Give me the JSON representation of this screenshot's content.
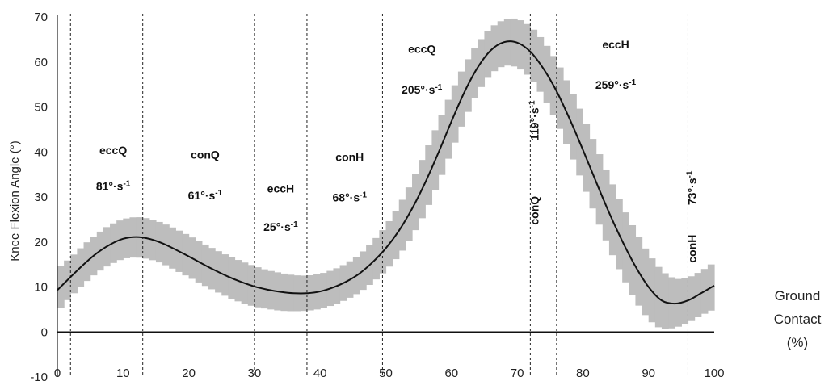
{
  "chart_data": {
    "type": "line",
    "title": "",
    "xlabel": [
      "Ground",
      "Contact",
      "(%)"
    ],
    "ylabel": "Knee Flexion Angle (°)",
    "xlim": [
      0,
      100
    ],
    "ylim": [
      -10,
      70
    ],
    "x_ticks": [
      0,
      10,
      20,
      30,
      40,
      50,
      60,
      70,
      80,
      90,
      100
    ],
    "y_ticks": [
      -10,
      0,
      10,
      20,
      30,
      40,
      50,
      60,
      70
    ],
    "grid": false,
    "colors": {
      "mean_line": "#111111",
      "sd_band": "#bdbdbd",
      "divider": "#222222"
    },
    "series": [
      {
        "x": [
          0,
          2,
          4,
          6,
          8,
          10,
          12,
          14,
          16,
          18,
          20,
          22,
          24,
          26,
          28,
          30,
          32,
          34,
          36,
          38,
          40,
          42,
          44,
          46,
          48,
          50,
          52,
          54,
          56,
          58,
          60,
          62,
          64,
          66,
          68,
          70,
          72,
          74,
          76,
          78,
          80,
          82,
          84,
          86,
          88,
          90,
          92,
          94,
          96,
          98,
          100
        ],
        "values": [
          9.3,
          12.2,
          15.0,
          17.5,
          19.4,
          20.7,
          21.1,
          20.7,
          19.7,
          18.3,
          16.8,
          15.2,
          13.7,
          12.3,
          11.1,
          10.1,
          9.4,
          8.9,
          8.6,
          8.6,
          9.0,
          9.9,
          11.2,
          13.0,
          15.5,
          18.6,
          22.5,
          27.4,
          33.2,
          39.8,
          46.8,
          53.4,
          58.8,
          62.6,
          64.4,
          64.3,
          62.3,
          58.5,
          53.5,
          47.3,
          40.5,
          33.4,
          26.5,
          20.2,
          14.6,
          10.0,
          7.0,
          6.3,
          7.0,
          8.6,
          10.3
        ],
        "sd_upper": [
          14.0,
          16.5,
          19.3,
          21.8,
          23.8,
          25.1,
          25.6,
          25.2,
          24.2,
          22.9,
          21.4,
          19.8,
          18.3,
          16.9,
          15.7,
          14.6,
          13.7,
          13.1,
          12.6,
          12.5,
          12.9,
          13.8,
          15.2,
          17.2,
          20.0,
          23.5,
          28.0,
          33.5,
          39.8,
          46.5,
          53.3,
          59.4,
          64.2,
          67.7,
          69.5,
          69.7,
          68.0,
          64.7,
          60.2,
          54.5,
          48.0,
          41.2,
          34.4,
          28.0,
          22.3,
          17.3,
          13.5,
          11.7,
          12.0,
          13.5,
          15.5
        ],
        "sd_lower": [
          4.6,
          7.9,
          10.7,
          13.2,
          15.0,
          16.3,
          16.6,
          16.2,
          15.2,
          13.7,
          12.2,
          10.6,
          9.1,
          7.7,
          6.5,
          5.6,
          5.1,
          4.7,
          4.6,
          4.7,
          5.1,
          6.0,
          7.2,
          8.8,
          11.0,
          13.7,
          17.0,
          21.3,
          26.6,
          33.1,
          40.3,
          47.4,
          53.4,
          57.5,
          59.3,
          58.9,
          56.6,
          52.3,
          46.8,
          40.1,
          33.0,
          25.6,
          18.6,
          12.4,
          6.9,
          2.7,
          0.5,
          0.9,
          2.0,
          3.7,
          5.1
        ]
      }
    ],
    "dividers": [
      2,
      13,
      30,
      38,
      49.5,
      72,
      76,
      96
    ],
    "phases": [
      {
        "name": "eccQ",
        "rate": "81°·s",
        "sup": "-1",
        "x": 8.5,
        "y_name": 39.5,
        "y_rate": 31.5,
        "vertical": false
      },
      {
        "name": "conQ",
        "rate": "61°·s",
        "sup": "-1",
        "x": 22.5,
        "y_name": 38.5,
        "y_rate": 29.5,
        "vertical": false
      },
      {
        "name": "eccH",
        "rate": "25°·s",
        "sup": "-1",
        "x": 34.0,
        "y_name": 31.0,
        "y_rate": 22.5,
        "vertical": false
      },
      {
        "name": "conH",
        "rate": "68°·s",
        "sup": "-1",
        "x": 44.5,
        "y_name": 38.0,
        "y_rate": 29.0,
        "vertical": false
      },
      {
        "name": "eccQ",
        "rate": "205°·s",
        "sup": "-1",
        "x": 55.5,
        "y_name": 62.0,
        "y_rate": 53.0,
        "vertical": false
      },
      {
        "name": "conQ",
        "rate": "119°·s",
        "sup": "-1",
        "x": 74.0,
        "y_name": 27.0,
        "y_rate": 47.0,
        "vertical": true
      },
      {
        "name": "eccH",
        "rate": "259°·s",
        "sup": "-1",
        "x": 85.0,
        "y_name": 63.0,
        "y_rate": 54.0,
        "vertical": false
      },
      {
        "name": "conH",
        "rate": "73°·s",
        "sup": "-1",
        "x": 98.0,
        "y_name": 18.5,
        "y_rate": 32.0,
        "vertical": true
      }
    ]
  }
}
